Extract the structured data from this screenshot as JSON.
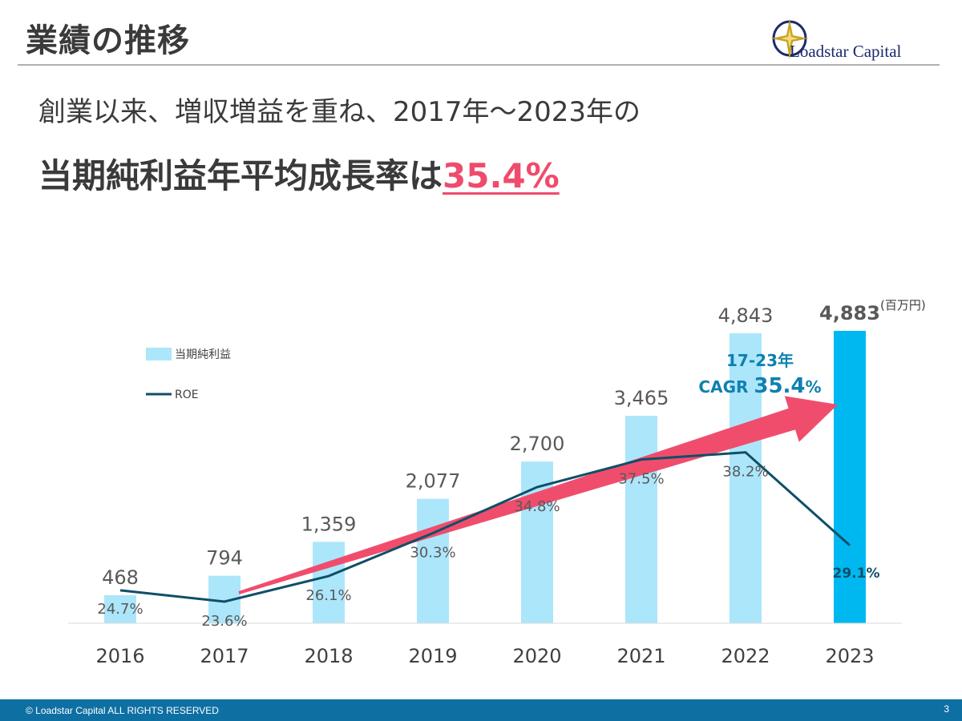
{
  "header": {
    "title": "業績の推移"
  },
  "logo": {
    "text": "Loadstar Capital"
  },
  "subtitle": {
    "line1": "創業以来、増収増益を重ね、2017年～2023年の",
    "line2_prefix": "当期純利益年平均成長率は",
    "line2_highlight": "35.4%"
  },
  "chart_data": {
    "type": "bar",
    "categories": [
      "2016",
      "2017",
      "2018",
      "2019",
      "2020",
      "2021",
      "2022",
      "2023"
    ],
    "series": [
      {
        "name": "当期純利益",
        "type": "bar",
        "values": [
          468,
          794,
          1359,
          2077,
          2700,
          3465,
          4843,
          4883
        ],
        "labels": [
          "468",
          "794",
          "1,359",
          "2,077",
          "2,700",
          "3,465",
          "4,843",
          "4,883"
        ]
      },
      {
        "name": "ROE",
        "type": "line",
        "values": [
          24.7,
          23.6,
          26.1,
          30.3,
          34.8,
          37.5,
          38.2,
          29.1
        ],
        "labels": [
          "24.7%",
          "23.6%",
          "26.1%",
          "30.3%",
          "34.8%",
          "37.5%",
          "38.2%",
          "29.1%"
        ]
      }
    ],
    "unit_label": "(百万円)",
    "cagr": {
      "line1": "17-23年",
      "line2_prefix": "CAGR ",
      "line2_value": "35.4",
      "line2_suffix": "%"
    },
    "colors": {
      "bar": "#ace6fb",
      "bar_highlight": "#00b8f0",
      "roe": "#0f4f68",
      "arrow": "#f04d6d",
      "cagr": "#0f80b0"
    }
  },
  "footer": {
    "copyright": "© Loadstar Capital ALL RIGHTS RESERVED",
    "page": "3"
  }
}
